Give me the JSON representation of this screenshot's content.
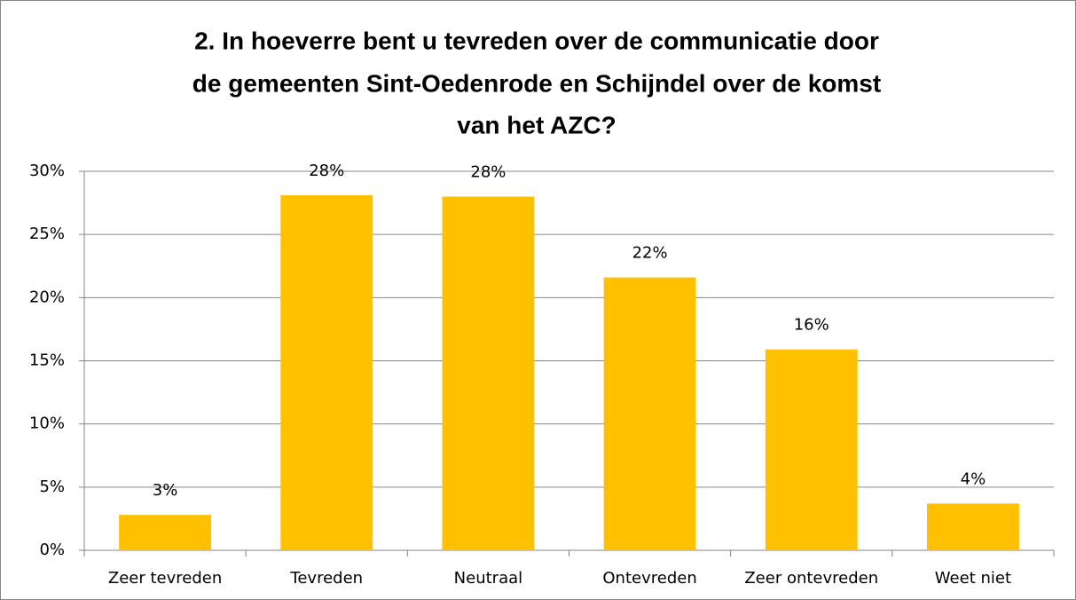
{
  "chart_data": {
    "type": "bar",
    "title": [
      "2. In hoeverre bent u tevreden over de communicatie door",
      "de gemeenten Sint-Oedenrode en Schijndel over de komst",
      "van het AZC?"
    ],
    "categories": [
      "Zeer tevreden",
      "Tevreden",
      "Neutraal",
      "Ontevreden",
      "Zeer ontevreden",
      "Weet niet"
    ],
    "values": [
      2.8,
      28.1,
      28.0,
      21.6,
      15.9,
      3.7
    ],
    "value_labels": [
      "3%",
      "28%",
      "28%",
      "22%",
      "16%",
      "4%"
    ],
    "color": "#ffc000",
    "ylim": [
      0,
      30
    ],
    "yticks": [
      {
        "value": 0,
        "label": "0%"
      },
      {
        "value": 5,
        "label": "5%"
      },
      {
        "value": 10,
        "label": "10%"
      },
      {
        "value": 15,
        "label": "15%"
      },
      {
        "value": 20,
        "label": "20%"
      },
      {
        "value": 25,
        "label": "25%"
      },
      {
        "value": 30,
        "label": "30%"
      }
    ],
    "grid": true
  }
}
